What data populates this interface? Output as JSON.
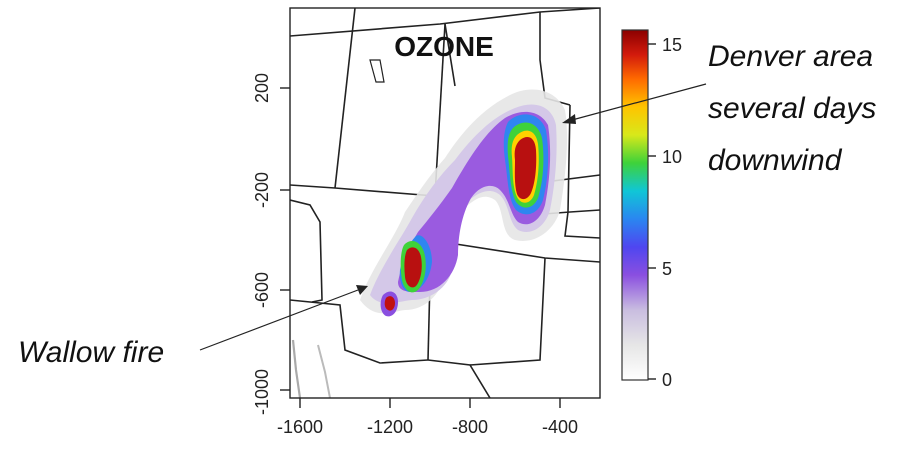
{
  "map": {
    "title": "OZONE",
    "x_ticks": [
      "-1600",
      "-1200",
      "-800",
      "-400"
    ],
    "y_ticks": [
      "200",
      "-200",
      "-600",
      "-1000"
    ]
  },
  "colorbar": {
    "ticks": [
      "15",
      "10",
      "5",
      "0"
    ],
    "colors": [
      "#ffffff",
      "#d8d8d8",
      "#b9a3d6",
      "#8a4fe0",
      "#5a3ff0",
      "#2a6cf0",
      "#11b6e6",
      "#16d6a0",
      "#3ed23a",
      "#c7e61a",
      "#ffe000",
      "#ff9a00",
      "#ff4a00",
      "#c01010",
      "#8b0000"
    ]
  },
  "annotations": {
    "denver_line1": "Denver area",
    "denver_line2": "several days",
    "denver_line3": "downwind",
    "wallow": "Wallow fire"
  }
}
